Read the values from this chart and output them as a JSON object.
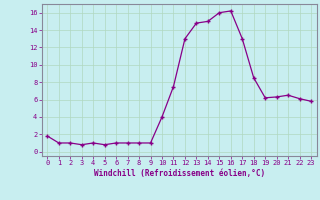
{
  "x": [
    0,
    1,
    2,
    3,
    4,
    5,
    6,
    7,
    8,
    9,
    10,
    11,
    12,
    13,
    14,
    15,
    16,
    17,
    18,
    19,
    20,
    21,
    22,
    23
  ],
  "y": [
    1.8,
    1.0,
    1.0,
    0.8,
    1.0,
    0.8,
    1.0,
    1.0,
    1.0,
    1.0,
    4.0,
    7.5,
    13.0,
    14.8,
    15.0,
    16.0,
    16.2,
    13.0,
    8.5,
    6.2,
    6.3,
    6.5,
    6.1,
    5.8
  ],
  "line_color": "#880088",
  "marker": "+",
  "bg_color": "#c8eef0",
  "grid_color": "#b0d8c0",
  "xlabel": "Windchill (Refroidissement éolien,°C)",
  "xlabel_color": "#880088",
  "tick_color": "#880088",
  "spine_color": "#888899",
  "ylim": [
    -0.5,
    17.0
  ],
  "yticks": [
    0,
    2,
    4,
    6,
    8,
    10,
    12,
    14,
    16
  ],
  "xlim": [
    -0.5,
    23.5
  ],
  "xticks": [
    0,
    1,
    2,
    3,
    4,
    5,
    6,
    7,
    8,
    9,
    10,
    11,
    12,
    13,
    14,
    15,
    16,
    17,
    18,
    19,
    20,
    21,
    22,
    23
  ]
}
